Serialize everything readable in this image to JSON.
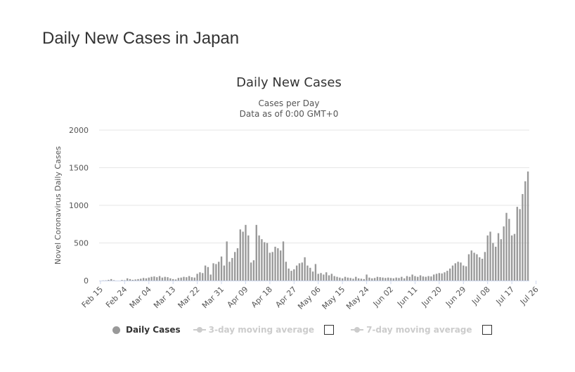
{
  "page": {
    "heading": "Daily New Cases in Japan"
  },
  "chart_data": {
    "type": "bar",
    "title": "Daily New Cases",
    "subtitle_line1": "Cases per Day",
    "subtitle_line2": "Data as of 0:00 GMT+0",
    "xlabel": "",
    "ylabel": "Novel Coronavirus Daily Cases",
    "ylim": [
      0,
      2000
    ],
    "yticks": [
      0,
      500,
      1000,
      1500,
      2000
    ],
    "grid": true,
    "bar_color": "#999999",
    "start_date": "Feb 15",
    "xtick_labels": [
      "Feb 15",
      "Feb 24",
      "Mar 04",
      "Mar 13",
      "Mar 22",
      "Mar 31",
      "Apr 09",
      "Apr 18",
      "Apr 27",
      "May 06",
      "May 15",
      "May 24",
      "Jun 02",
      "Jun 11",
      "Jun 20",
      "Jun 29",
      "Jul 08",
      "Jul 17",
      "Jul 26"
    ],
    "series": [
      {
        "name": "Daily Cases",
        "values": [
          0,
          2,
          3,
          10,
          20,
          5,
          0,
          0,
          8,
          5,
          30,
          20,
          10,
          15,
          20,
          25,
          35,
          30,
          40,
          50,
          55,
          45,
          60,
          40,
          50,
          45,
          30,
          20,
          15,
          35,
          40,
          50,
          45,
          60,
          45,
          40,
          90,
          110,
          100,
          200,
          180,
          80,
          230,
          220,
          250,
          320,
          200,
          520,
          250,
          300,
          380,
          430,
          680,
          650,
          740,
          600,
          240,
          270,
          740,
          600,
          550,
          510,
          500,
          370,
          380,
          450,
          430,
          400,
          520,
          250,
          160,
          130,
          150,
          200,
          230,
          240,
          310,
          200,
          170,
          120,
          220,
          90,
          100,
          80,
          110,
          70,
          90,
          60,
          50,
          40,
          30,
          50,
          40,
          35,
          25,
          50,
          30,
          25,
          20,
          80,
          40,
          30,
          35,
          50,
          45,
          40,
          35,
          40,
          35,
          30,
          40,
          35,
          50,
          30,
          60,
          50,
          80,
          60,
          50,
          70,
          55,
          50,
          60,
          55,
          80,
          90,
          100,
          95,
          110,
          130,
          160,
          200,
          230,
          250,
          240,
          200,
          190,
          350,
          400,
          370,
          350,
          310,
          290,
          380,
          600,
          650,
          500,
          450,
          630,
          550,
          720,
          900,
          820,
          600,
          620,
          980,
          950,
          1150,
          1320,
          1450
        ]
      }
    ]
  },
  "legend": {
    "items": [
      {
        "label": "Daily Cases",
        "color": "#999999",
        "active": true
      },
      {
        "label": "3-day moving average",
        "active": false
      },
      {
        "label": "7-day moving average",
        "active": false
      }
    ]
  }
}
